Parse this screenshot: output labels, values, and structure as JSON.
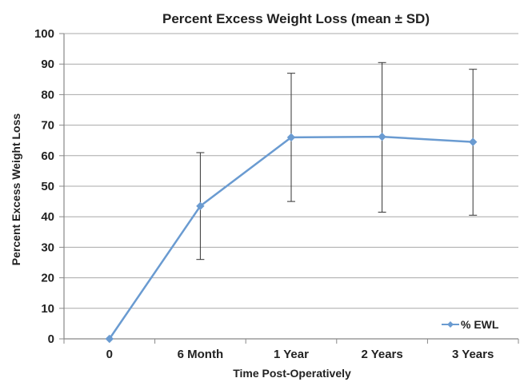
{
  "chart_data": {
    "type": "line",
    "title": "Percent Excess Weight Loss (mean ± SD)",
    "xlabel": "Time Post-Operatively",
    "ylabel": "Percent Excess Weight Loss",
    "categories": [
      "0",
      "6 Month",
      "1 Year",
      "2 Years",
      "3 Years"
    ],
    "ylim": [
      0,
      100
    ],
    "yticks": [
      0,
      10,
      20,
      30,
      40,
      50,
      60,
      70,
      80,
      90,
      100
    ],
    "grid": true,
    "legend_position": "bottom-right",
    "series": [
      {
        "name": "% EWL",
        "color": "#6a9bd1",
        "values": [
          0,
          43.5,
          66,
          66.2,
          64.5
        ],
        "error_low": [
          null,
          26,
          45,
          41.5,
          40.5
        ],
        "error_high": [
          null,
          61,
          87,
          90.5,
          88.3
        ]
      }
    ]
  }
}
